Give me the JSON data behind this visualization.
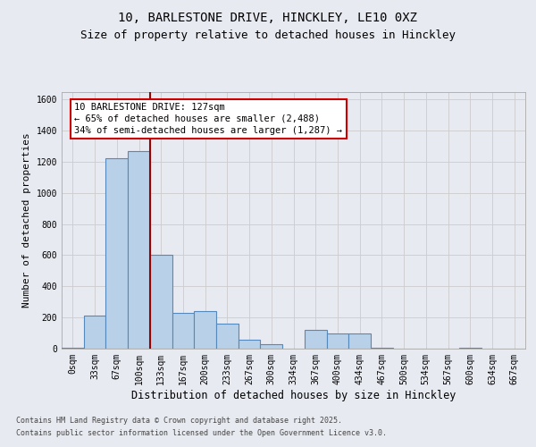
{
  "title_line1": "10, BARLESTONE DRIVE, HINCKLEY, LE10 0XZ",
  "title_line2": "Size of property relative to detached houses in Hinckley",
  "xlabel": "Distribution of detached houses by size in Hinckley",
  "ylabel": "Number of detached properties",
  "categories": [
    "0sqm",
    "33sqm",
    "67sqm",
    "100sqm",
    "133sqm",
    "167sqm",
    "200sqm",
    "233sqm",
    "267sqm",
    "300sqm",
    "334sqm",
    "367sqm",
    "400sqm",
    "434sqm",
    "467sqm",
    "500sqm",
    "534sqm",
    "567sqm",
    "600sqm",
    "634sqm",
    "667sqm"
  ],
  "values": [
    5,
    210,
    1220,
    1270,
    600,
    230,
    240,
    160,
    55,
    30,
    0,
    120,
    100,
    100,
    5,
    0,
    0,
    0,
    5,
    0,
    0
  ],
  "bar_color": "#b8d0e8",
  "bar_edge_color": "#5588bb",
  "bar_width": 1.0,
  "vline_x": 3.5,
  "vline_color": "#990000",
  "annotation_text": "10 BARLESTONE DRIVE: 127sqm\n← 65% of detached houses are smaller (2,488)\n34% of semi-detached houses are larger (1,287) →",
  "annotation_box_color": "#ffffff",
  "annotation_box_edge_color": "#cc0000",
  "ylim": [
    0,
    1650
  ],
  "yticks": [
    0,
    200,
    400,
    600,
    800,
    1000,
    1200,
    1400,
    1600
  ],
  "grid_color": "#cccccc",
  "bg_color": "#e8eaf2",
  "plot_bg_color": "#e8eaf2",
  "footer_line1": "Contains HM Land Registry data © Crown copyright and database right 2025.",
  "footer_line2": "Contains public sector information licensed under the Open Government Licence v3.0.",
  "title_fontsize": 10,
  "subtitle_fontsize": 9,
  "ylabel_fontsize": 8,
  "xlabel_fontsize": 8.5,
  "tick_fontsize": 7,
  "annotation_fontsize": 7.5,
  "footer_fontsize": 6
}
